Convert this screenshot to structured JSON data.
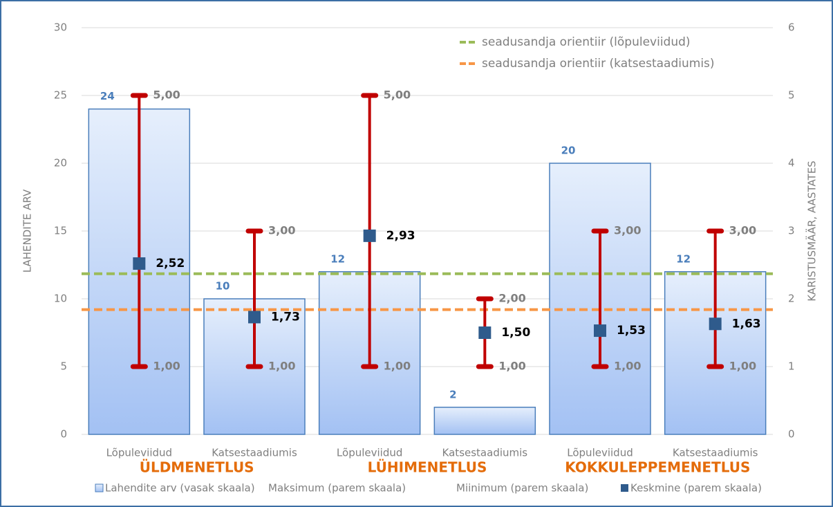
{
  "chart_data": {
    "type": "bar",
    "categories": [
      "Lõpuleviidud",
      "Katsestaadiumis",
      "Lõpuleviidud",
      "Katsestaadiumis",
      "Lõpuleviidud",
      "Katsestaadiumis"
    ],
    "groups": [
      "ÜLDMENETLUS",
      "LÜHIMENETLUS",
      "KOKKULEPPEMENETLUS"
    ],
    "ylabel": "LAHENDITE ARV",
    "y2label": "KARISTUSMÄÄR, AASTATES",
    "ylim": [
      0,
      30
    ],
    "yticks": [
      0,
      5,
      10,
      15,
      20,
      25,
      30
    ],
    "y2lim": [
      0,
      6
    ],
    "y2ticks": [
      0,
      1,
      2,
      3,
      4,
      5,
      6
    ],
    "series": [
      {
        "name": "Lahendite arv (vasak skaala)",
        "type": "bar",
        "color": "#4a7ebb",
        "values": [
          24,
          10,
          12,
          2,
          20,
          12
        ]
      },
      {
        "name": "Maksimum (parem skaala)",
        "axis": "y2",
        "color": "#c00000",
        "values": [
          5,
          3,
          5,
          2,
          3,
          3
        ],
        "value_labels": [
          "5,00",
          "3,00",
          "5,00",
          "2,00",
          "3,00",
          "3,00"
        ]
      },
      {
        "name": "Miinimum (parem skaala)",
        "axis": "y2",
        "color": "#c00000",
        "values": [
          1,
          1,
          1,
          1,
          1,
          1
        ],
        "value_labels": [
          "1,00",
          "1,00",
          "1,00",
          "1,00",
          "1,00",
          "1,00"
        ]
      },
      {
        "name": "Keskmine (parem skaala)",
        "axis": "y2",
        "marker": "square",
        "color": "#2f5b8c",
        "values": [
          2.52,
          1.73,
          2.93,
          1.5,
          1.53,
          1.63
        ],
        "value_labels": [
          "2,52",
          "1,73",
          "2,93",
          "1,50",
          "1,53",
          "1,63"
        ]
      }
    ],
    "reference_lines": [
      {
        "name": "seadusandja orientiir (lõpuleviidud)",
        "axis": "y2",
        "color": "#9bbb59",
        "value": 2.37
      },
      {
        "name": "seadusandja orientiir (katsestaadiumis)",
        "axis": "y2",
        "color": "#f79646",
        "value": 1.84
      }
    ]
  }
}
